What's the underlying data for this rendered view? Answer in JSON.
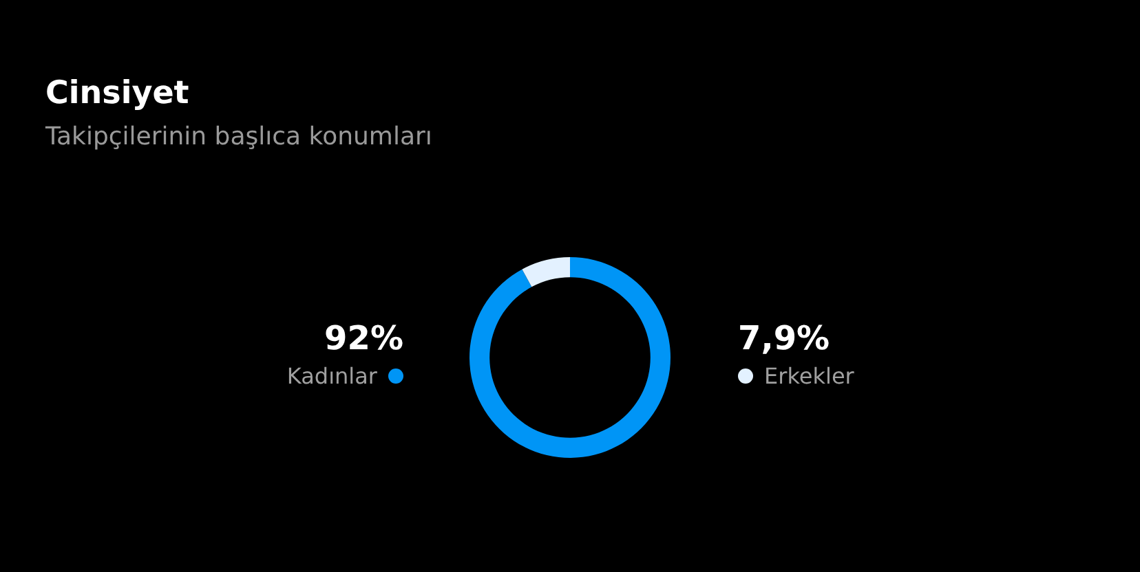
{
  "chart_data": {
    "type": "donut",
    "title": "Cinsiyet",
    "subtitle": "Takipçilerinin başlıca konumları",
    "categories": [
      "Kadınlar",
      "Erkekler"
    ],
    "values": [
      92,
      7.9
    ],
    "value_labels": [
      "92%",
      "7,9%"
    ],
    "colors": [
      "#0095f6",
      "#e3f1ff"
    ]
  }
}
